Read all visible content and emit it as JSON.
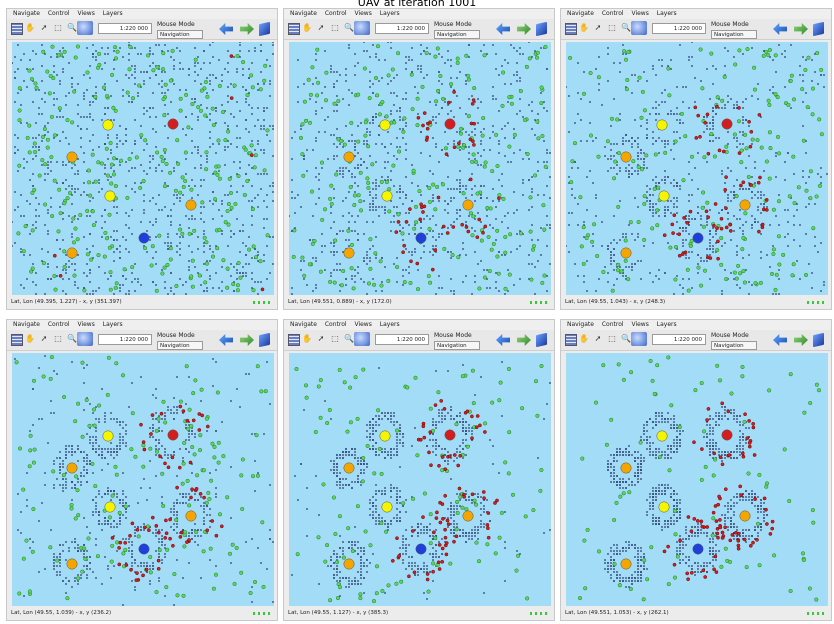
{
  "figure_title": "UAV at iteration 1001",
  "menu": [
    "Navigate",
    "Control",
    "Views",
    "Layers"
  ],
  "mode_label": "Mouse Mode",
  "colors": {
    "map_bg": "#a2dcf7",
    "sensor": "#2a3a6a",
    "green": "#56d95a",
    "red": "#d21e1e",
    "yellow": "#f5f500",
    "orange": "#f4a500",
    "blue": "#1f3fdc"
  },
  "icons": [
    "grid-icon",
    "hand-icon",
    "pointer-icon",
    "select-box-icon",
    "zoom-icon",
    "globe-icon",
    "back-arrow-icon",
    "forward-arrow-icon",
    "cube-icon"
  ],
  "panels": [
    {
      "scale": "1:220 000",
      "mode_value": "Navigation",
      "status": "Lat, Lon (49.395, 1.227) - x, y (351.397)"
    },
    {
      "scale": "1:220 000",
      "mode_value": "Navigation",
      "status": "Lat, Lon (49.551, 0.889) - x, y (172.0)"
    },
    {
      "scale": "1:220 000",
      "mode_value": "Navigation",
      "status": "Lat, Lon (49.55, 1.043) - x, y (248.3)"
    },
    {
      "scale": "1:220 000",
      "mode_value": "Navigation",
      "status": "Lat, Lon (49.55, 1.039) - x, y (236.2)"
    },
    {
      "scale": "1:220 000",
      "mode_value": "Navigation",
      "status": "Lat, Lon (49.55, 1.127) - x, y (385.3)"
    },
    {
      "scale": "1:220 000",
      "mode_value": "Navigation",
      "status": "Lat, Lon (49.551, 1.053) - x, y (262.1)"
    }
  ]
}
